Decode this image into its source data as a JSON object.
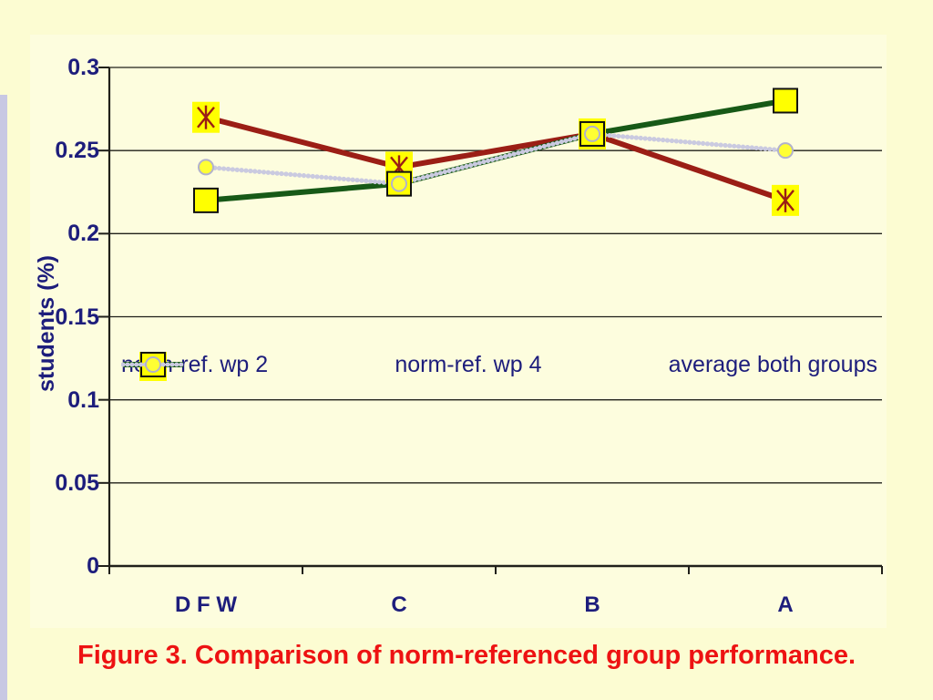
{
  "slide": {
    "caption": "Figure 3. Comparison of norm-referenced group performance."
  },
  "colors": {
    "slide_background": "#fcfcd2",
    "chart_background": "#fdfdde",
    "axis_text": "#1d1d7c",
    "caption_text": "#ed1212",
    "gridline": "#20201a",
    "series_wp2": "#9b1e15",
    "series_wp4": "#175917",
    "series_average": "#cacae0",
    "marker_fill": "#ffff00"
  },
  "chart_data": {
    "type": "line",
    "title": "",
    "xlabel": "",
    "ylabel": "students (%)",
    "categories": [
      "D F W",
      "C",
      "B",
      "A"
    ],
    "series": [
      {
        "name": "norm-ref. wp 2",
        "values": [
          0.27,
          0.24,
          0.26,
          0.22
        ],
        "color": "#9b1e15",
        "marker": "star",
        "marker_fill": "#ffff00",
        "style": "solid"
      },
      {
        "name": "norm-ref. wp 4",
        "values": [
          0.22,
          0.23,
          0.26,
          0.28
        ],
        "color": "#175917",
        "marker": "square",
        "marker_fill": "#ffff00",
        "style": "solid"
      },
      {
        "name": "average both groups",
        "values": [
          0.24,
          0.23,
          0.26,
          0.25
        ],
        "color": "#cacae0",
        "marker": "circle",
        "marker_fill": "#ffff33",
        "style": "dotted"
      }
    ],
    "ylim": [
      0,
      0.3
    ],
    "ytick_labels": [
      "0",
      "0.05",
      "0.1",
      "0.15",
      "0.2",
      "0.25",
      "0.3"
    ],
    "grid": true,
    "legend_position": "inside-middle"
  }
}
